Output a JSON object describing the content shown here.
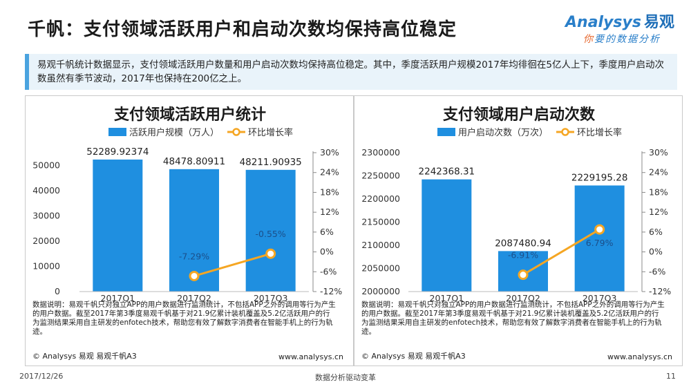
{
  "page": {
    "title": "千帆：支付领域活跃用户和启动次数均保持高位稳定",
    "summary": "易观千帆统计数据显示，支付领域活跃用户数量和用户启动次数均保持高位稳定。其中，季度活跃用户规模2017年均徘徊在5亿人上下，季度用户启动次数虽然有季节波动，2017年也保持在200亿之上。",
    "logo_main": "Analysys",
    "logo_cn": "易观",
    "logo_tagline_accent": "你",
    "logo_tagline": "要的数据分析",
    "footer_date": "2017/12/26",
    "footer_center": "数据分析驱动变革",
    "footer_page": "11"
  },
  "colors": {
    "bar": "#1f8fe0",
    "line": "#f5a623",
    "accent_blue": "#4aa3df"
  },
  "left_panel": {
    "note": "数据说明：易观千帆只对独立APP的用户数据进行监测统计，不包括APP之外的调用等行为产生的用户数据。截至2017年第3季度易观千帆基于对21.9亿累计装机覆盖及5.2亿活跃用户的行为监测结果采用自主研发的enfotech技术，帮助您有效了解数字消费者在智能手机上的行为轨迹。",
    "copyright": "© Analysys 易观 易观千帆A3",
    "site": "www.analysys.cn"
  },
  "right_panel": {
    "note": "数据说明：易观千帆只对独立APP的用户数据进行监测统计，不包括APP之外的调用等行为产生的用户数据。截至2017年第3季度易观千帆基于对21.9亿累计装机覆盖及5.2亿活跃用户的行为监测结果采用自主研发的enfotech技术，帮助您有效了解数字消费者在智能手机上的行为轨迹。",
    "copyright": "© Analysys 易观 易观千帆A3",
    "site": "www.analysys.cn"
  },
  "chart_data": [
    {
      "type": "bar",
      "title": "支付领域活跃用户统计",
      "categories": [
        "2017Q1",
        "2017Q2",
        "2017Q3"
      ],
      "series": [
        {
          "name": "活跃用户规模（万人）",
          "values": [
            52289.92374,
            48478.80911,
            48211.90935
          ],
          "labels": [
            "52289.92374",
            "48478.80911",
            "48211.90935"
          ]
        },
        {
          "name": "环比增长率",
          "type": "line",
          "values": [
            null,
            -7.29,
            -0.55
          ],
          "labels": [
            "",
            "-7.29%",
            "-0.55%"
          ]
        }
      ],
      "y_ticks": [
        "0",
        "10000",
        "20000",
        "30000",
        "40000",
        "50000"
      ],
      "y2_ticks": [
        "-12%",
        "-6%",
        "0%",
        "6%",
        "12%",
        "18%",
        "24%",
        "30%"
      ],
      "ylim": [
        0,
        55000
      ],
      "y2lim": [
        -12,
        30
      ],
      "legend": "top"
    },
    {
      "type": "bar",
      "title": "支付领域用户启动次数",
      "categories": [
        "2017Q1",
        "2017Q2",
        "2017Q3"
      ],
      "series": [
        {
          "name": "用户启动次数（万次）",
          "values": [
            2242368.31,
            2087480.94,
            2229195.28
          ],
          "labels": [
            "2242368.31",
            "2087480.94",
            "2229195.28"
          ]
        },
        {
          "name": "环比增长率",
          "type": "line",
          "values": [
            null,
            -6.91,
            6.79
          ],
          "labels": [
            "",
            "-6.91%",
            "6.79%"
          ]
        }
      ],
      "y_ticks": [
        "2000000",
        "2050000",
        "2100000",
        "2150000",
        "2200000",
        "2250000",
        "2300000"
      ],
      "y2_ticks": [
        "-12%",
        "-6%",
        "0%",
        "6%",
        "12%",
        "18%",
        "24%",
        "30%"
      ],
      "ylim": [
        2000000,
        2300000
      ],
      "y2lim": [
        -12,
        30
      ],
      "legend": "top"
    }
  ]
}
